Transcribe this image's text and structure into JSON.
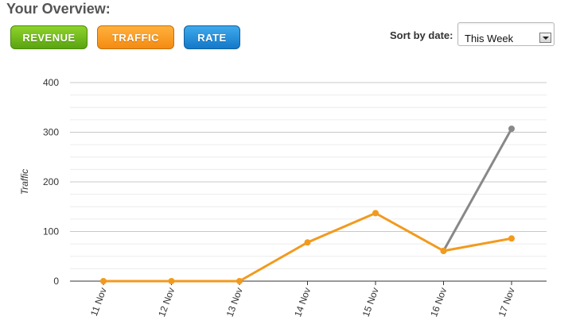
{
  "header": {
    "title": "Your Overview:"
  },
  "tabs": {
    "revenue_label": "REVENUE",
    "traffic_label": "TRAFFIC",
    "rate_label": "RATE"
  },
  "sort": {
    "label": "Sort by date:",
    "selected": "This Week"
  },
  "colors": {
    "revenue": "#6cbf1a",
    "traffic": "#f29a1d",
    "rate": "#2290dc",
    "comparison_line": "#888888"
  },
  "chart_data": {
    "type": "line",
    "ylabel": "Traffic",
    "xlabel": "",
    "ylim": [
      0,
      400
    ],
    "yticks": [
      0,
      100,
      200,
      300,
      400
    ],
    "grid": true,
    "categories": [
      "11 Nov",
      "12 Nov",
      "13 Nov",
      "14 Nov",
      "15 Nov",
      "16 Nov",
      "17 Nov"
    ],
    "series": [
      {
        "color": "#f29a1d",
        "values": [
          0,
          0,
          0,
          78,
          137,
          61,
          86
        ]
      },
      {
        "color": "#888888",
        "values": [
          null,
          null,
          null,
          null,
          null,
          61,
          307
        ]
      }
    ]
  }
}
